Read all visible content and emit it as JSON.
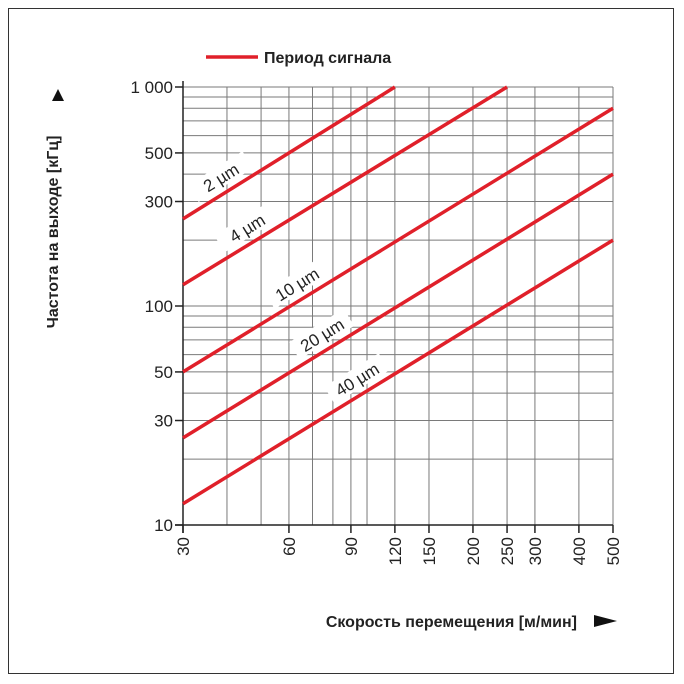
{
  "chart_data": {
    "type": "line",
    "title": "",
    "legend": {
      "label": "Период сигнала",
      "position": "top-left"
    },
    "xlabel": "Скорость перемещения [м/мин]",
    "ylabel": "Частота на выходе [кГц]",
    "x_scale": "log",
    "y_scale": "log",
    "xlim": [
      30,
      500
    ],
    "ylim": [
      10,
      1000
    ],
    "x_ticks": [
      30,
      60,
      90,
      120,
      150,
      200,
      250,
      300,
      400,
      500
    ],
    "x_tick_labels": [
      "30",
      "60",
      "90",
      "120",
      "150",
      "200",
      "250",
      "300",
      "400",
      "500"
    ],
    "y_ticks": [
      10,
      30,
      50,
      100,
      300,
      500,
      1000
    ],
    "y_tick_labels": [
      "10",
      "30",
      "50",
      "100",
      "300",
      "500",
      "1 000"
    ],
    "x_gridlines": [
      40,
      50,
      60,
      70,
      80,
      90,
      100,
      120,
      150,
      200,
      250,
      300,
      400,
      500
    ],
    "y_gridlines": [
      20,
      30,
      40,
      50,
      60,
      70,
      80,
      90,
      100,
      200,
      300,
      400,
      500,
      600,
      700,
      800,
      900,
      1000
    ],
    "grid": true,
    "line_color": "#e0202a",
    "series": [
      {
        "name": "2 µm",
        "x": [
          30,
          120
        ],
        "y": [
          250,
          1000
        ]
      },
      {
        "name": "4 µm",
        "x": [
          30,
          250
        ],
        "y": [
          125,
          1000
        ]
      },
      {
        "name": "10 µm",
        "x": [
          30,
          500
        ],
        "y": [
          50,
          800
        ]
      },
      {
        "name": "20 µm",
        "x": [
          30,
          500
        ],
        "y": [
          25,
          400
        ]
      },
      {
        "name": "40 µm",
        "x": [
          30,
          500
        ],
        "y": [
          12.5,
          200
        ]
      }
    ]
  }
}
